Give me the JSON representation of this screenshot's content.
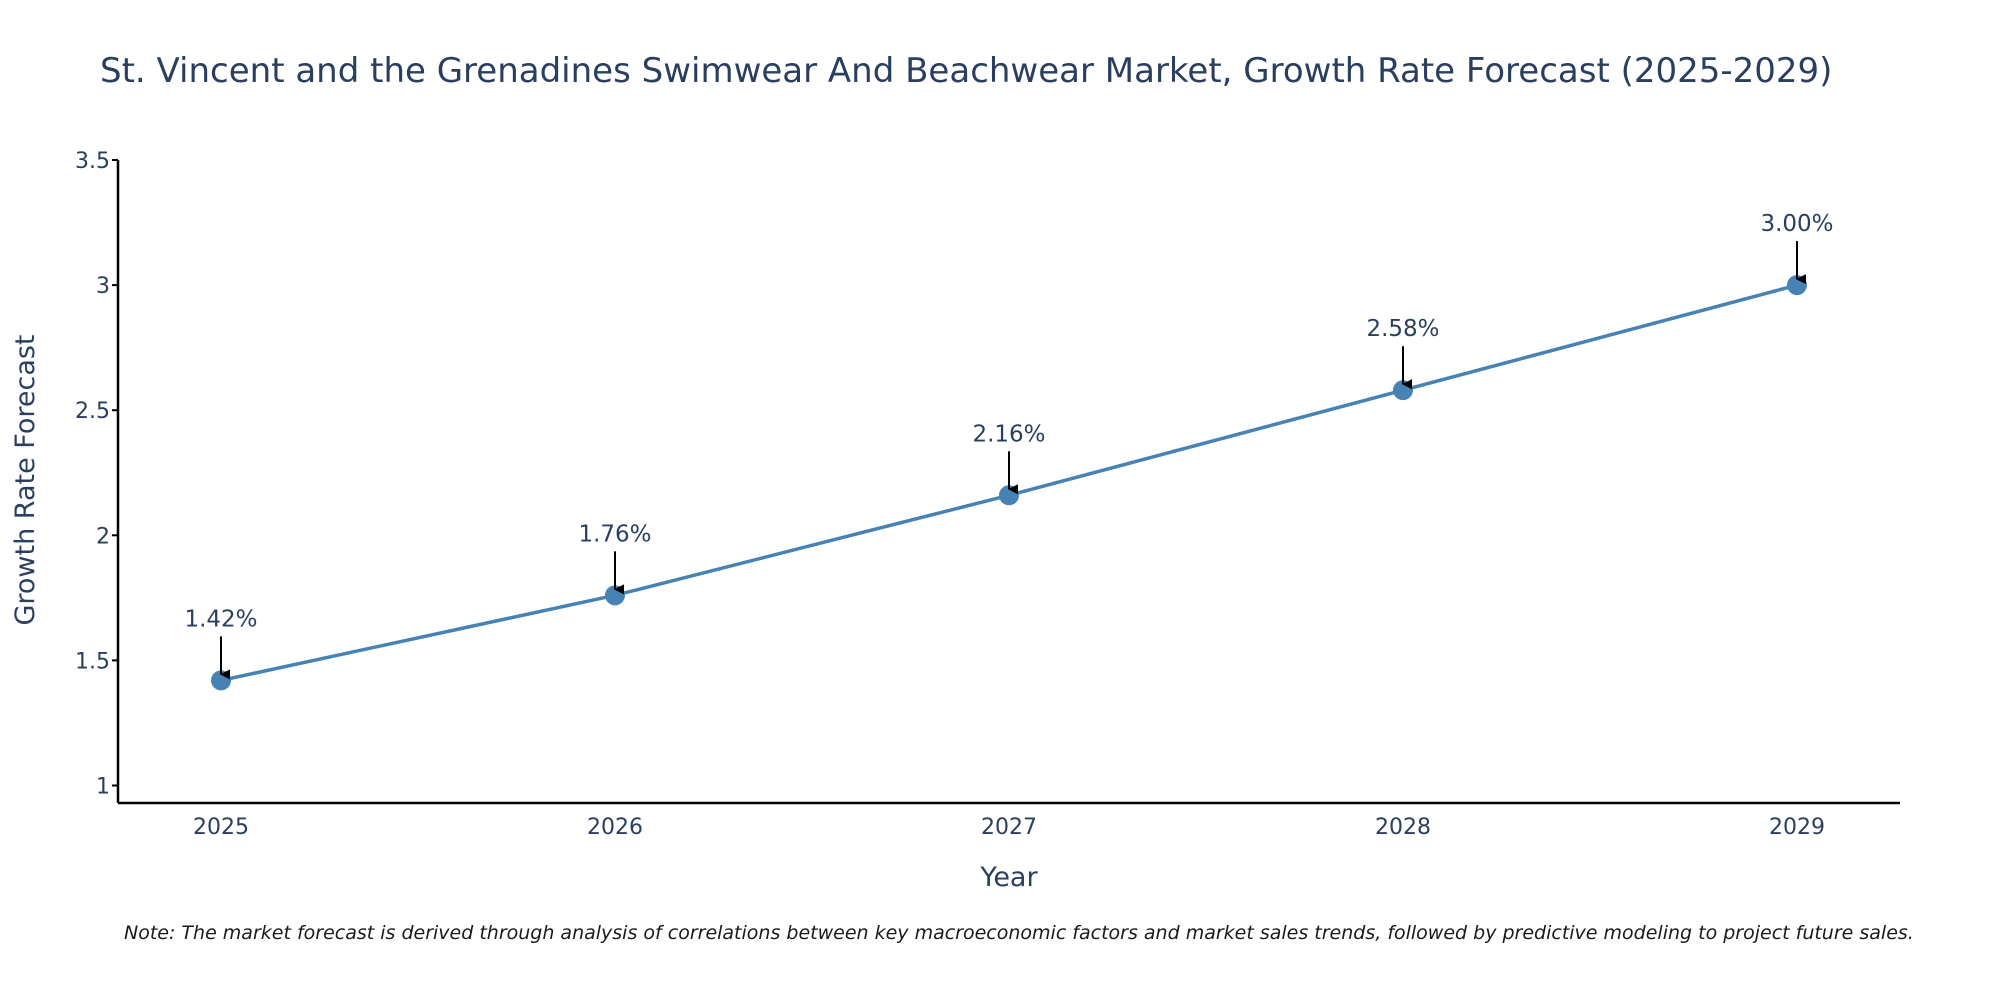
{
  "chart_data": {
    "type": "line",
    "title": "St. Vincent and the Grenadines Swimwear And Beachwear Market, Growth Rate Forecast (2025-2029)",
    "xlabel": "Year",
    "ylabel": "Growth Rate Forecast",
    "x": [
      "2025",
      "2026",
      "2027",
      "2028",
      "2029"
    ],
    "series": [
      {
        "name": "Growth Rate Forecast",
        "values": [
          1.42,
          1.76,
          2.16,
          2.58,
          3.0
        ],
        "labels": [
          "1.42%",
          "1.76%",
          "2.16%",
          "2.58%",
          "3.00%"
        ]
      }
    ],
    "ylim": [
      0.93,
      3.5
    ],
    "yticks": [
      1,
      1.5,
      2,
      2.5,
      3,
      3.5
    ],
    "ytick_labels": [
      "1",
      "1.5",
      "2",
      "2.5",
      "3",
      "3.5"
    ],
    "grid": false,
    "colors": {
      "line": "#4682b4",
      "marker": "#4682b4",
      "arrow": "#000000",
      "axis": "#000000",
      "text": "#2a3f5f"
    }
  },
  "note": "Note: The market forecast is derived through analysis of correlations between key macroeconomic factors and market sales trends, followed by predictive modeling to project future sales."
}
